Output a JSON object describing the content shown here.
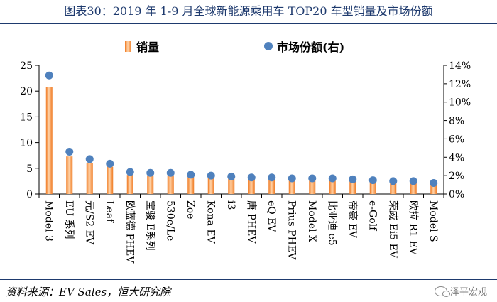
{
  "title": "图表30：2019 年 1-9 月全球新能源乘用车 TOP20 车型销量及市场份额",
  "source": "资料来源：EV Sales，恒大研究院",
  "watermark": "泽平宏观",
  "colors": {
    "bar": "#f0822f",
    "bar_shade": "#ffd3a8",
    "dot": "#4f81bd",
    "axis": "#000000"
  },
  "chart_data": {
    "type": "bar",
    "categories": [
      "Model 3",
      "EU 系列",
      "元/S2 EV",
      "Leaf",
      "欧蓝德 PHEV",
      "宝骏 E系列",
      "530e/Le",
      "Zoe",
      "Kona EV",
      "i3",
      "唐 PHEV",
      "eQ EV",
      "Prius PHEV",
      "Model X",
      "比亚迪 e5",
      "帝豪 EV",
      "e-Golf",
      "荣威 Ei5 EV",
      "欧拉 R1 EV",
      "Model S"
    ],
    "series": [
      {
        "name": "销量",
        "type": "bar",
        "axis": "left",
        "values": [
          20.8,
          7.3,
          6.0,
          5.3,
          3.7,
          3.6,
          3.6,
          3.3,
          3.2,
          3.0,
          2.9,
          2.8,
          2.7,
          2.7,
          2.7,
          2.6,
          2.4,
          2.3,
          2.2,
          1.9
        ]
      },
      {
        "name": "市场份额(右)",
        "type": "scatter",
        "axis": "right",
        "values": [
          12.9,
          4.6,
          3.8,
          3.3,
          2.4,
          2.3,
          2.3,
          2.1,
          2.0,
          1.9,
          1.8,
          1.8,
          1.7,
          1.7,
          1.7,
          1.6,
          1.5,
          1.4,
          1.4,
          1.2
        ]
      }
    ],
    "y_left": {
      "min": 0,
      "max": 25,
      "step": 5
    },
    "y_right": {
      "min": 0,
      "max": 14,
      "step": 2,
      "suffix": "%"
    },
    "legend": {
      "position": "top-center"
    },
    "grid": false
  }
}
